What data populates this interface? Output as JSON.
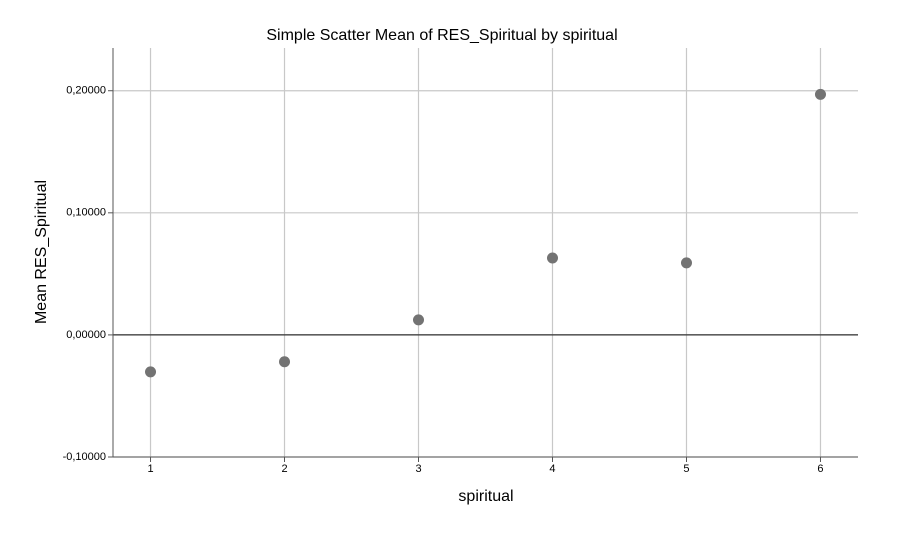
{
  "chart_data": {
    "type": "scatter",
    "title": "Simple Scatter Mean of RES_Spiritual by spiritual",
    "x_label": "spiritual",
    "y_label": "Mean RES_Spiritual",
    "series": [
      {
        "x": [
          1,
          2,
          3,
          4,
          5,
          6
        ],
        "values": [
          -0.0303,
          -0.022,
          0.0123,
          0.063,
          0.059,
          0.197
        ],
        "color": "#737373"
      }
    ],
    "xlim": [
      0.72,
      6.28
    ],
    "xticks": [
      1,
      2,
      3,
      4,
      5,
      6
    ],
    "ylim": [
      -0.1,
      0.235
    ],
    "yticks": [
      {
        "value": -0.1,
        "label": "-0,10000"
      },
      {
        "value": 0,
        "label": "0,00000"
      },
      {
        "value": 0.1,
        "label": "0,10000"
      },
      {
        "value": 0.2,
        "label": "0,20000"
      }
    ],
    "reference_line": 0,
    "grid": true
  }
}
